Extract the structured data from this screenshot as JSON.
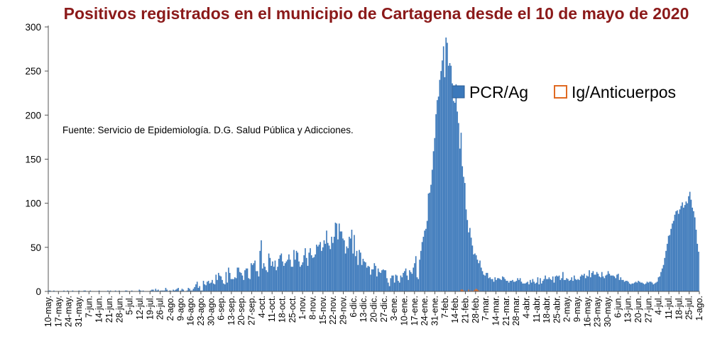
{
  "chart_data": {
    "type": "bar",
    "title": "Positivos registrados en el municipio de Cartagena desde el 10 de mayo de 2020",
    "source_note": "Fuente: Servicio de Epidemiología. D.G. Salud Pública y Adicciones.",
    "xlabel": "",
    "ylabel": "",
    "ylim": [
      0,
      300
    ],
    "yticks": [
      0,
      50,
      100,
      150,
      200,
      250,
      300
    ],
    "grid": false,
    "legend_position": "top-right",
    "x_tick_labels": [
      "10-may.",
      "17-may.",
      "24-may.",
      "31-may.",
      "7-jun.",
      "14-jun.",
      "21-jun.",
      "28-jun.",
      "5-jul.",
      "12-jul.",
      "19-jul.",
      "26-jul.",
      "2-ago.",
      "9-ago.",
      "16-ago.",
      "23-ago.",
      "30-ago.",
      "6-sep.",
      "13-sep.",
      "20-sep.",
      "27-sep.",
      "4-oct.",
      "11-oct.",
      "18-oct.",
      "25-oct.",
      "1-nov.",
      "8-nov.",
      "15-nov.",
      "22-nov.",
      "29-nov.",
      "6-dic.",
      "13-dic.",
      "20-dic.",
      "27-dic.",
      "3-ene.",
      "10-ene.",
      "17-ene.",
      "24-ene.",
      "31-ene.",
      "7-feb.",
      "14-feb.",
      "21-feb.",
      "28-feb.",
      "7-mar.",
      "14-mar.",
      "21-mar.",
      "28-mar.",
      "4-abr.",
      "11-abr.",
      "18-abr.",
      "25-abr.",
      "2-may.",
      "9-may.",
      "16-may.",
      "23-may.",
      "30-may.",
      "6-jun.",
      "13-jun.",
      "20-jun.",
      "27-jun.",
      "4-jul.",
      "11-jul.",
      "18-jul.",
      "25-jul.",
      "1-ago."
    ],
    "series": [
      {
        "name": "PCR/Ag",
        "color": "#3b78ba",
        "values": [
          1,
          1,
          0,
          0,
          1,
          0,
          0,
          0,
          0,
          0,
          0,
          0,
          1,
          0,
          0,
          1,
          0,
          0,
          0,
          1,
          0,
          0,
          0,
          0,
          1,
          0,
          0,
          0,
          1,
          1,
          0,
          0,
          0,
          1,
          0,
          0,
          0,
          0,
          0,
          0,
          1,
          0,
          0,
          0,
          0,
          0,
          0,
          1,
          0,
          1,
          0,
          0,
          0,
          1,
          0,
          0,
          1,
          0,
          0,
          0,
          0,
          1,
          1,
          0,
          0,
          0,
          1,
          0,
          0,
          0,
          0,
          0,
          2,
          1,
          0,
          1,
          0,
          0,
          0,
          0,
          0,
          1,
          2,
          2,
          0,
          3,
          1,
          2,
          0,
          1,
          1,
          1,
          1,
          4,
          2,
          0,
          1,
          1,
          0,
          2,
          1,
          2,
          3,
          4,
          0,
          1,
          3,
          2,
          0,
          0,
          1,
          4,
          3,
          1,
          1,
          3,
          5,
          8,
          11,
          4,
          6,
          1,
          1,
          12,
          8,
          7,
          11,
          12,
          9,
          10,
          13,
          9,
          8,
          19,
          13,
          21,
          18,
          17,
          13,
          9,
          8,
          22,
          10,
          27,
          21,
          14,
          14,
          14,
          16,
          15,
          27,
          27,
          22,
          21,
          18,
          13,
          24,
          26,
          26,
          15,
          14,
          32,
          30,
          32,
          35,
          23,
          23,
          17,
          46,
          58,
          26,
          32,
          28,
          24,
          22,
          43,
          38,
          29,
          34,
          28,
          35,
          24,
          28,
          37,
          41,
          43,
          34,
          29,
          32,
          34,
          36,
          42,
          36,
          28,
          28,
          47,
          36,
          46,
          44,
          34,
          28,
          30,
          33,
          41,
          49,
          38,
          29,
          44,
          49,
          41,
          38,
          39,
          42,
          53,
          51,
          53,
          56,
          46,
          50,
          58,
          54,
          69,
          55,
          52,
          48,
          62,
          55,
          62,
          78,
          77,
          59,
          77,
          68,
          68,
          60,
          58,
          43,
          51,
          49,
          62,
          60,
          70,
          43,
          64,
          40,
          46,
          30,
          47,
          44,
          30,
          37,
          34,
          33,
          27,
          29,
          28,
          19,
          25,
          25,
          32,
          29,
          17,
          26,
          22,
          21,
          24,
          25,
          24,
          24,
          15,
          10,
          6,
          15,
          18,
          18,
          10,
          19,
          18,
          12,
          10,
          18,
          16,
          21,
          23,
          26,
          18,
          13,
          24,
          22,
          20,
          27,
          32,
          40,
          16,
          14,
          36,
          46,
          56,
          62,
          69,
          71,
          80,
          111,
          112,
          121,
          138,
          159,
          174,
          201,
          217,
          221,
          240,
          250,
          262,
          278,
          243,
          288,
          282,
          256,
          259,
          256,
          236,
          216,
          214,
          235,
          204,
          191,
          162,
          180,
          142,
          130,
          123,
          93,
          81,
          67,
          72,
          61,
          52,
          42,
          43,
          41,
          36,
          32,
          35,
          27,
          23,
          19,
          18,
          21,
          21,
          15,
          16,
          14,
          14,
          11,
          16,
          13,
          15,
          15,
          14,
          13,
          17,
          16,
          14,
          12,
          12,
          10,
          12,
          12,
          13,
          11,
          11,
          12,
          15,
          13,
          15,
          11,
          9,
          9,
          9,
          10,
          11,
          8,
          13,
          10,
          14,
          11,
          9,
          10,
          16,
          8,
          15,
          9,
          12,
          14,
          18,
          14,
          14,
          16,
          14,
          13,
          17,
          10,
          17,
          18,
          17,
          18,
          13,
          15,
          22,
          13,
          13,
          15,
          14,
          12,
          13,
          16,
          12,
          18,
          14,
          13,
          14,
          13,
          17,
          19,
          18,
          20,
          15,
          18,
          17,
          24,
          16,
          21,
          23,
          19,
          19,
          22,
          20,
          17,
          16,
          22,
          17,
          15,
          18,
          19,
          23,
          20,
          18,
          18,
          18,
          17,
          15,
          19,
          20,
          13,
          16,
          13,
          13,
          11,
          12,
          12,
          11,
          9,
          8,
          9,
          9,
          10,
          11,
          10,
          12,
          11,
          10,
          10,
          9,
          8,
          9,
          11,
          10,
          11,
          11,
          10,
          8,
          9,
          10,
          11,
          16,
          17,
          22,
          26,
          30,
          38,
          46,
          54,
          63,
          64,
          71,
          77,
          80,
          87,
          91,
          92,
          88,
          93,
          97,
          101,
          95,
          98,
          102,
          100,
          108,
          113,
          104,
          95,
          91,
          84,
          70,
          54,
          45
        ]
      },
      {
        "name": "Ig/Anticuerpos",
        "color": "#e06a22",
        "values": [
          0,
          0,
          0,
          0,
          0,
          0,
          0,
          0,
          0,
          0,
          0,
          0,
          0,
          0,
          0,
          0,
          0,
          0,
          0,
          0,
          0,
          0,
          0,
          0,
          0,
          0,
          0,
          0,
          0,
          0,
          0,
          0,
          0,
          0,
          0,
          0,
          0,
          0,
          0,
          0,
          0,
          0,
          0,
          0,
          0,
          0,
          0,
          0,
          0,
          0,
          0,
          0,
          0,
          0,
          0,
          0,
          0,
          0,
          0,
          0,
          0,
          0,
          0,
          0,
          0,
          0,
          0,
          0,
          0,
          0,
          0,
          0,
          0,
          0,
          0,
          0,
          0,
          0,
          0,
          0,
          0,
          0,
          0,
          0,
          0,
          0,
          0,
          0,
          0,
          0,
          0,
          0,
          0,
          0,
          0,
          0,
          0,
          0,
          0,
          0,
          0,
          0,
          0,
          0,
          0,
          0,
          0,
          0,
          0,
          0,
          0,
          0,
          0,
          0,
          0,
          0,
          0,
          0,
          0,
          0,
          0,
          0,
          0,
          0,
          0,
          0,
          0,
          0,
          0,
          0,
          0,
          0,
          0,
          0,
          0,
          0,
          0,
          0,
          0,
          0,
          0,
          0,
          0,
          0,
          0,
          0,
          0,
          0,
          0,
          0,
          0,
          0,
          0,
          0,
          0,
          0,
          0,
          0,
          0,
          0,
          0,
          0,
          0,
          0,
          0,
          0,
          0,
          0,
          0,
          0,
          0,
          0,
          0,
          0,
          0,
          0,
          0,
          0,
          0,
          0,
          0,
          0,
          0,
          0,
          0,
          0,
          0,
          0,
          0,
          0,
          0,
          0,
          0,
          0,
          0,
          0,
          0,
          0,
          0,
          0,
          0,
          0,
          0,
          0,
          0,
          0,
          0,
          0,
          0,
          0,
          0,
          0,
          0,
          0,
          0,
          0,
          0,
          0,
          0,
          0,
          0,
          0,
          0,
          0,
          0,
          0,
          0,
          0,
          0,
          0,
          0,
          0,
          0,
          0,
          0,
          0,
          0,
          0,
          0,
          0,
          0,
          0,
          0,
          0,
          0,
          0,
          0,
          0,
          0,
          0,
          0,
          0,
          0,
          0,
          0,
          0,
          0,
          0,
          0,
          0,
          0,
          0,
          0,
          0,
          0,
          0,
          0,
          0,
          0,
          0,
          0,
          0,
          0,
          0,
          0,
          0,
          0,
          0,
          0,
          0,
          0,
          0,
          0,
          0,
          0,
          0,
          0,
          0,
          0,
          0,
          0,
          0,
          0,
          0,
          0,
          0,
          0,
          0,
          0,
          0,
          0,
          0,
          0,
          0,
          0,
          0,
          0,
          0,
          0,
          0,
          0,
          0,
          0,
          0,
          0,
          0,
          0,
          0,
          0,
          0,
          0,
          0,
          0,
          0,
          0,
          0,
          0,
          0,
          2,
          2,
          1,
          0,
          0,
          0,
          2,
          0,
          1,
          0,
          1,
          2,
          3,
          2,
          1,
          0,
          0,
          0,
          0,
          0,
          0,
          0,
          0,
          0,
          0,
          0,
          0,
          0,
          0,
          0,
          0,
          0,
          0,
          0,
          0,
          0,
          0,
          0,
          0,
          0,
          0,
          0,
          0,
          0,
          0,
          0,
          0,
          0,
          0,
          0,
          0,
          0,
          0,
          0,
          0,
          0,
          0,
          0,
          0,
          0,
          0,
          0,
          0,
          0,
          0,
          0,
          0,
          0,
          0,
          0,
          0,
          0,
          0,
          0,
          0,
          0,
          0,
          0,
          0,
          0,
          0,
          0,
          0,
          0,
          0,
          0,
          0,
          0,
          0,
          0,
          0,
          0,
          0,
          0,
          0,
          0,
          0,
          0,
          0,
          0,
          0,
          0,
          0,
          0,
          0,
          0,
          0,
          0,
          0,
          0,
          0,
          0,
          0,
          0,
          0,
          0,
          0,
          0,
          0,
          0,
          0,
          0,
          0,
          0,
          0,
          0,
          0,
          0,
          0,
          0,
          0,
          0,
          0,
          0,
          0,
          0,
          0,
          0,
          0,
          0,
          0,
          0,
          0,
          0,
          0,
          0,
          0,
          0,
          0,
          0,
          0,
          0,
          0,
          0,
          0,
          0,
          0,
          0,
          0,
          0,
          0,
          0,
          0,
          0,
          0,
          0,
          0,
          0,
          0,
          0,
          0,
          0,
          0,
          0,
          0,
          0,
          0,
          0,
          0,
          0,
          0,
          0,
          0,
          0,
          0,
          0,
          0,
          0,
          0,
          0,
          0,
          0,
          0,
          0,
          0,
          0,
          0,
          0
        ]
      }
    ]
  }
}
